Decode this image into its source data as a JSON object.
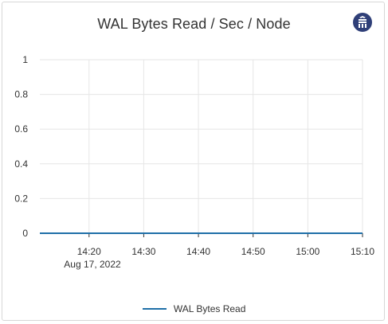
{
  "panel": {
    "title": "WAL Bytes Read / Sec / Node",
    "brand_icon": "database-icon"
  },
  "chart_data": {
    "type": "line",
    "title": "WAL Bytes Read / Sec / Node",
    "xlabel": "",
    "ylabel": "",
    "ylim": [
      0,
      1
    ],
    "yticks": [
      "0",
      "0.2",
      "0.4",
      "0.6",
      "0.8",
      "1"
    ],
    "yticks_values": [
      0,
      0.2,
      0.4,
      0.6,
      0.8,
      1
    ],
    "xlim": [
      "14:11",
      "15:10"
    ],
    "xticks": [
      "14:20",
      "14:30",
      "14:40",
      "14:50",
      "15:00",
      "15:10"
    ],
    "xtick_date": "Aug 17, 2022",
    "grid": true,
    "legend_position": "bottom",
    "series": [
      {
        "name": "WAL Bytes Read",
        "color": "#1f6fa8",
        "x": [
          "14:11",
          "14:20",
          "14:30",
          "14:40",
          "14:50",
          "15:00",
          "15:10"
        ],
        "values": [
          0,
          0,
          0,
          0,
          0,
          0,
          0
        ]
      }
    ]
  }
}
